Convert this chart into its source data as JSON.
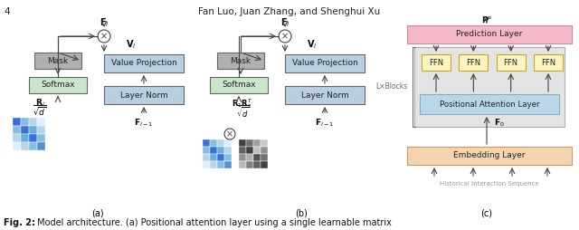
{
  "title_text": "Fan Luo, Juan Zhang, and Shenghui Xu",
  "page_num": "4",
  "caption_bold": "Fig. 2:",
  "caption_rest": " Model architecture. (a) Positional attention layer using a single learnable matrix",
  "panel_a_label": "(a)",
  "panel_b_label": "(b)",
  "panel_c_label": "(c)",
  "colors": {
    "mask_box": "#b0b0b0",
    "softmax_box": "#c8e6c9",
    "value_proj_box": "#b8cfe0",
    "layer_norm_box": "#b8cfe0",
    "prediction_box": "#f4b8c8",
    "embedding_box": "#f5d5b0",
    "positional_box": "#b8d8ea",
    "block_bg": "#e0e0e0",
    "ffn_box": "#f8f5c0",
    "ffn_border": "#c8a820",
    "arrow": "#444444",
    "text": "#222222",
    "light_text": "#999999"
  },
  "figsize": [
    6.4,
    2.54
  ],
  "dpi": 100
}
